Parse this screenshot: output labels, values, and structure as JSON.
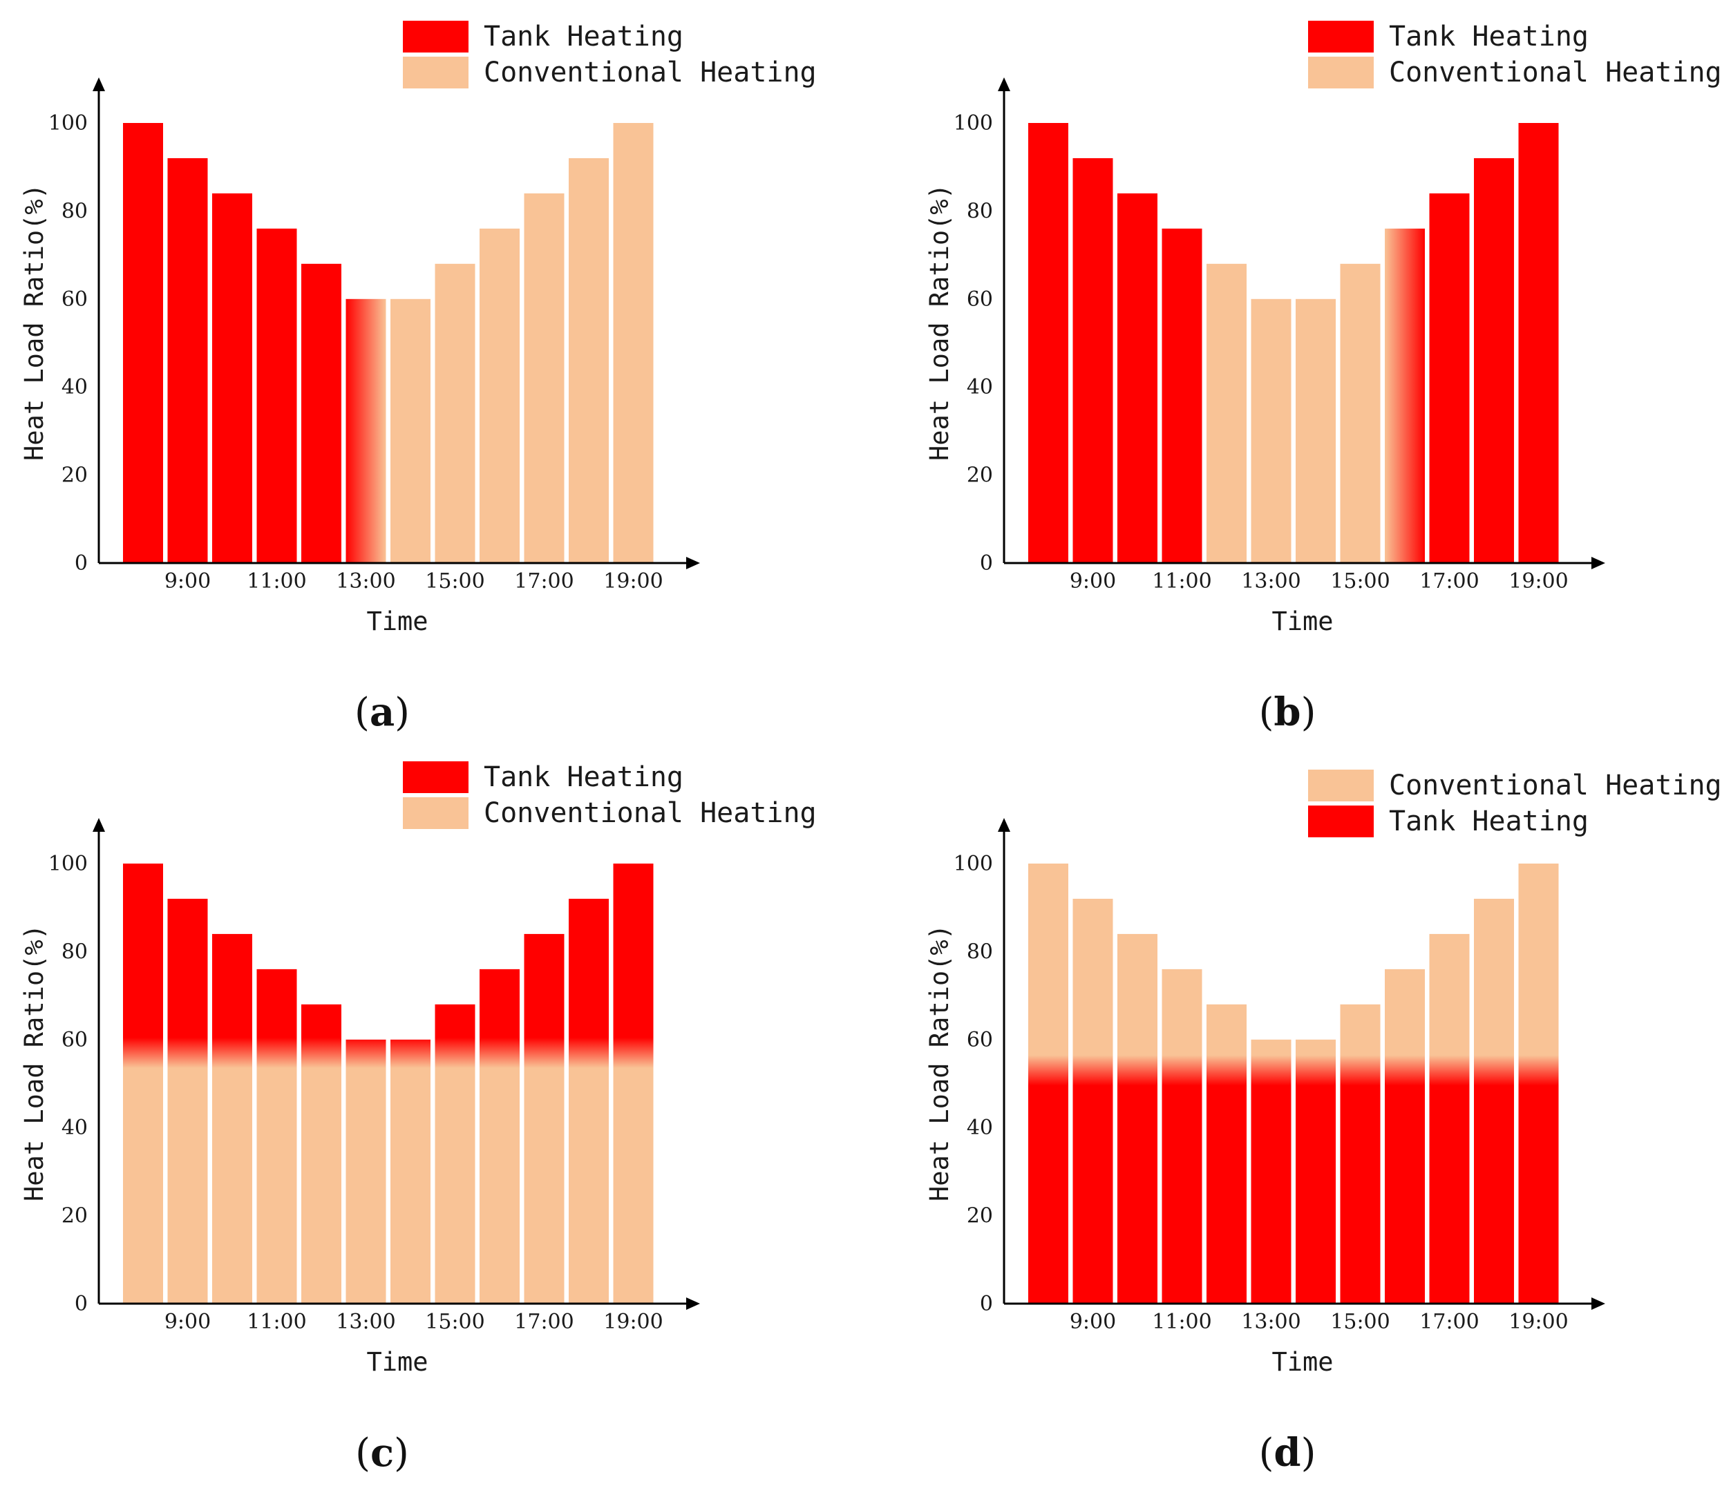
{
  "colors": {
    "tank": "#ff0000",
    "conventional": "#f9c396",
    "axis": "#000000"
  },
  "chart_data": [
    {
      "panel": "a",
      "caption_letter": "a",
      "type": "bar",
      "xlabel": "Time",
      "ylabel": "Heat Load Ratio(%)",
      "ylim": [
        0,
        100
      ],
      "yticks": [
        "0",
        "20",
        "40",
        "60",
        "80",
        "100"
      ],
      "xtick_labels": [
        "9:00",
        "11:00",
        "13:00",
        "15:00",
        "17:00",
        "19:00"
      ],
      "categories": [
        "8:00",
        "9:00",
        "10:00",
        "11:00",
        "12:00",
        "13:00",
        "14:00",
        "15:00",
        "16:00",
        "17:00",
        "18:00",
        "19:00"
      ],
      "values": [
        100,
        92,
        84,
        76,
        68,
        60,
        60,
        68,
        76,
        84,
        92,
        100
      ],
      "fill": [
        "tank",
        "tank",
        "tank",
        "tank",
        "tank",
        "tank-to-conventional",
        "conventional",
        "conventional",
        "conventional",
        "conventional",
        "conventional",
        "conventional"
      ],
      "split_at": null,
      "legend": [
        "Tank Heating",
        "Conventional Heating"
      ],
      "legend_keys": [
        "tank",
        "conventional"
      ],
      "legend_position": "top-right"
    },
    {
      "panel": "b",
      "caption_letter": "b",
      "type": "bar",
      "xlabel": "Time",
      "ylabel": "Heat Load Ratio(%)",
      "ylim": [
        0,
        100
      ],
      "yticks": [
        "0",
        "20",
        "40",
        "60",
        "80",
        "100"
      ],
      "xtick_labels": [
        "9:00",
        "11:00",
        "13:00",
        "15:00",
        "17:00",
        "19:00"
      ],
      "categories": [
        "8:00",
        "9:00",
        "10:00",
        "11:00",
        "12:00",
        "13:00",
        "14:00",
        "15:00",
        "16:00",
        "17:00",
        "18:00",
        "19:00"
      ],
      "values": [
        100,
        92,
        84,
        76,
        68,
        60,
        60,
        68,
        76,
        84,
        92,
        100
      ],
      "fill": [
        "tank",
        "tank",
        "tank",
        "tank",
        "conventional",
        "conventional",
        "conventional",
        "conventional",
        "conventional-to-tank",
        "tank",
        "tank",
        "tank"
      ],
      "split_at": null,
      "legend": [
        "Tank Heating",
        "Conventional Heating"
      ],
      "legend_keys": [
        "tank",
        "conventional"
      ],
      "legend_position": "top-right"
    },
    {
      "panel": "c",
      "caption_letter": "c",
      "type": "bar",
      "xlabel": "Time",
      "ylabel": "Heat Load Ratio(%)",
      "ylim": [
        0,
        100
      ],
      "yticks": [
        "0",
        "20",
        "40",
        "60",
        "80",
        "100"
      ],
      "xtick_labels": [
        "9:00",
        "11:00",
        "13:00",
        "15:00",
        "17:00",
        "19:00"
      ],
      "categories": [
        "8:00",
        "9:00",
        "10:00",
        "11:00",
        "12:00",
        "13:00",
        "14:00",
        "15:00",
        "16:00",
        "17:00",
        "18:00",
        "19:00"
      ],
      "values": [
        100,
        92,
        84,
        76,
        68,
        60,
        60,
        68,
        76,
        84,
        92,
        100
      ],
      "stack": {
        "bottom": "conventional",
        "top": "tank"
      },
      "split_at": 57,
      "legend": [
        "Tank Heating",
        "Conventional Heating"
      ],
      "legend_keys": [
        "tank",
        "conventional"
      ],
      "legend_position": "top-right"
    },
    {
      "panel": "d",
      "caption_letter": "d",
      "type": "bar",
      "xlabel": "Time",
      "ylabel": "Heat Load Ratio(%)",
      "ylim": [
        0,
        100
      ],
      "yticks": [
        "0",
        "20",
        "40",
        "60",
        "80",
        "100"
      ],
      "xtick_labels": [
        "9:00",
        "11:00",
        "13:00",
        "15:00",
        "17:00",
        "19:00"
      ],
      "categories": [
        "8:00",
        "9:00",
        "10:00",
        "11:00",
        "12:00",
        "13:00",
        "14:00",
        "15:00",
        "16:00",
        "17:00",
        "18:00",
        "19:00"
      ],
      "values": [
        100,
        92,
        84,
        76,
        68,
        60,
        60,
        68,
        76,
        84,
        92,
        100
      ],
      "stack": {
        "bottom": "tank",
        "top": "conventional"
      },
      "split_at": 53,
      "legend": [
        "Conventional Heating",
        "Tank Heating"
      ],
      "legend_keys": [
        "conventional",
        "tank"
      ],
      "legend_position": "top-right"
    }
  ]
}
